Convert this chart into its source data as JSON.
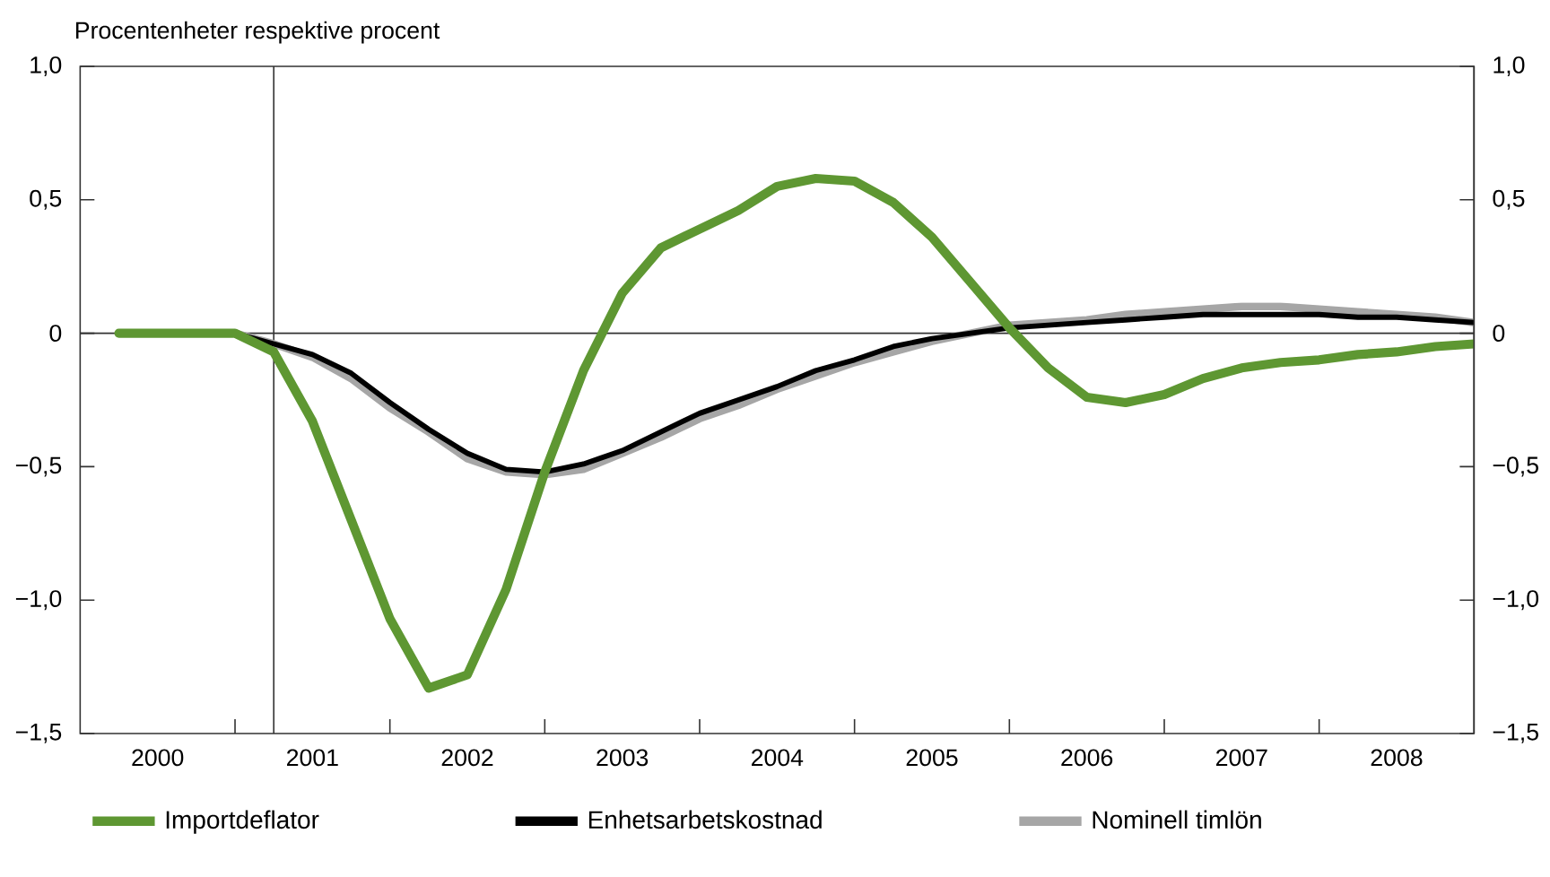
{
  "chart_data": {
    "type": "line",
    "title": "Procentenheter respektive procent",
    "x": [
      2000.25,
      2000.5,
      2000.75,
      2001.0,
      2001.25,
      2001.5,
      2001.75,
      2002.0,
      2002.25,
      2002.5,
      2002.75,
      2003.0,
      2003.25,
      2003.5,
      2003.75,
      2004.0,
      2004.25,
      2004.5,
      2004.75,
      2005.0,
      2005.25,
      2005.5,
      2005.75,
      2006.0,
      2006.25,
      2006.5,
      2006.75,
      2007.0,
      2007.25,
      2007.5,
      2007.75,
      2008.0,
      2008.25,
      2008.5,
      2008.75,
      2009.0
    ],
    "series": [
      {
        "name": "Nominell timlön",
        "color": "#a6a6a6",
        "values": [
          0,
          0,
          0,
          0,
          -0.04,
          -0.09,
          -0.17,
          -0.28,
          -0.37,
          -0.47,
          -0.52,
          -0.53,
          -0.51,
          -0.45,
          -0.39,
          -0.32,
          -0.27,
          -0.21,
          -0.16,
          -0.11,
          -0.07,
          -0.03,
          0.0,
          0.03,
          0.04,
          0.05,
          0.07,
          0.08,
          0.09,
          0.1,
          0.1,
          0.09,
          0.08,
          0.07,
          0.06,
          0.04
        ]
      },
      {
        "name": "Enhetsarbetskostnad",
        "color": "#000000",
        "values": [
          0,
          0,
          0,
          0,
          -0.04,
          -0.08,
          -0.15,
          -0.26,
          -0.36,
          -0.45,
          -0.51,
          -0.52,
          -0.49,
          -0.44,
          -0.37,
          -0.3,
          -0.25,
          -0.2,
          -0.14,
          -0.1,
          -0.05,
          -0.02,
          0.0,
          0.02,
          0.03,
          0.04,
          0.05,
          0.06,
          0.07,
          0.07,
          0.07,
          0.07,
          0.06,
          0.06,
          0.05,
          0.04
        ]
      },
      {
        "name": "Importdeflator",
        "color": "#5e9732",
        "values": [
          0,
          0,
          0,
          0,
          -0.07,
          -0.33,
          -0.7,
          -1.07,
          -1.33,
          -1.28,
          -0.96,
          -0.52,
          -0.14,
          0.15,
          0.32,
          0.39,
          0.46,
          0.55,
          0.58,
          0.57,
          0.49,
          0.36,
          0.19,
          0.02,
          -0.13,
          -0.24,
          -0.26,
          -0.23,
          -0.17,
          -0.13,
          -0.11,
          -0.1,
          -0.08,
          -0.07,
          -0.05,
          -0.04
        ]
      }
    ],
    "xlim": [
      2000,
      2009
    ],
    "xticks": [
      {
        "value": 2001,
        "label": null
      },
      {
        "value": 2002,
        "label": null
      },
      {
        "value": 2003,
        "label": null
      },
      {
        "value": 2004,
        "label": null
      },
      {
        "value": 2005,
        "label": null
      },
      {
        "value": 2006,
        "label": null
      },
      {
        "value": 2007,
        "label": null
      },
      {
        "value": 2008,
        "label": null
      },
      {
        "value": 2000.5,
        "label": "2000"
      },
      {
        "value": 2001.5,
        "label": "2001"
      },
      {
        "value": 2002.5,
        "label": "2002"
      },
      {
        "value": 2003.5,
        "label": "2003"
      },
      {
        "value": 2004.5,
        "label": "2004"
      },
      {
        "value": 2005.5,
        "label": "2005"
      },
      {
        "value": 2006.5,
        "label": "2006"
      },
      {
        "value": 2007.5,
        "label": "2007"
      },
      {
        "value": 2008.5,
        "label": "2008"
      }
    ],
    "ylim": [
      -1.5,
      1.0
    ],
    "yticks": [
      {
        "value": -1.5,
        "label": "−1,5"
      },
      {
        "value": -1.0,
        "label": "−1,0"
      },
      {
        "value": -0.5,
        "label": "−0,5"
      },
      0,
      {
        "value": 0.5,
        "label": "0,5"
      },
      {
        "value": 1.0,
        "label": "1,0"
      }
    ],
    "y2lim": [
      -1.5,
      1.0
    ],
    "y2ticks": [
      {
        "value": -1.5,
        "label": "−1,5"
      },
      {
        "value": -1.0,
        "label": "−1,0"
      },
      {
        "value": -0.5,
        "label": "−0,5"
      },
      0,
      {
        "value": 0.5,
        "label": "0,5"
      },
      {
        "value": 1.0,
        "label": "1,0"
      }
    ],
    "ref_lines": [
      {
        "axis": "x",
        "value": 2001.25,
        "color": "#333333"
      },
      {
        "axis": "y",
        "value": 0,
        "color": "#333333"
      }
    ],
    "legend": "bottom",
    "grid": false,
    "marker": "none",
    "line_style": "solid"
  }
}
